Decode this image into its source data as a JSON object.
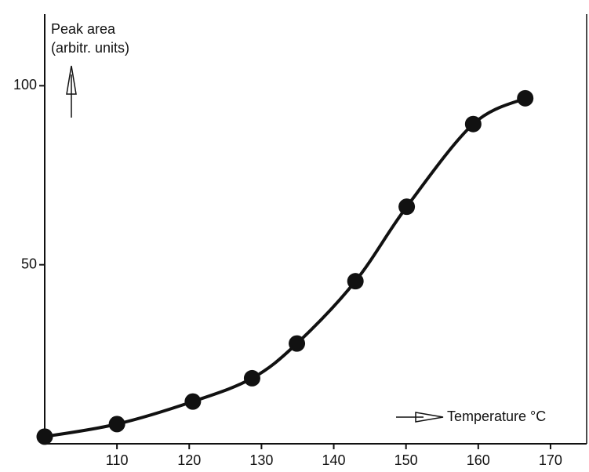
{
  "chart_data": {
    "type": "line",
    "y_label_lines": [
      "Peak area",
      "(arbitr. units)"
    ],
    "x_label": "Temperature °C",
    "x": [
      100,
      110,
      120.5,
      128.7,
      134.9,
      143,
      150.1,
      159.3,
      166.5
    ],
    "series": [
      {
        "color": "#111111",
        "values": [
          2,
          5.5,
          11.8,
          18.3,
          28,
          45.4,
          66.2,
          89.3,
          96.5
        ]
      }
    ],
    "xlim": [
      100,
      175
    ],
    "ylim": [
      0,
      120
    ],
    "xticks": [
      110,
      120,
      130,
      140,
      150,
      160,
      170
    ],
    "yticks": [
      50,
      100
    ],
    "grid": false
  }
}
